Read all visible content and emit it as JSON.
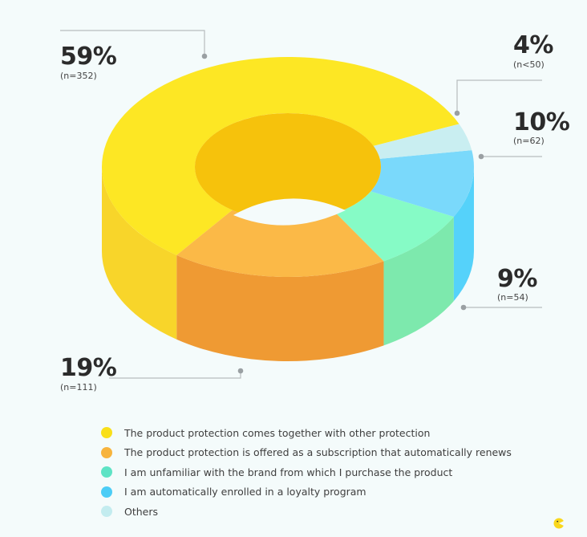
{
  "chart_data": {
    "type": "pie",
    "variant": "3d-donut",
    "slices": [
      {
        "label": "The product protection comes together with other protection",
        "value": 59,
        "display": "59%",
        "n_label": "(n=352)",
        "color": "#fde724",
        "side_color": "#f8d52a"
      },
      {
        "label": "The product protection is offered as a subscription that automatically renews",
        "value": 19,
        "display": "19%",
        "n_label": "(n=111)",
        "color": "#fbb947",
        "side_color": "#ef9a33"
      },
      {
        "label": "I am unfamiliar with the brand from which I purchase the product",
        "value": 9,
        "display": "9%",
        "n_label": "(n=54)",
        "color": "#86fbc6",
        "side_color": "#7de9ad"
      },
      {
        "label": "I am automatically enrolled in a loyalty program",
        "value": 10,
        "display": "10%",
        "n_label": "(n=62)",
        "color": "#7ad9fb",
        "side_color": "#55d2fa"
      },
      {
        "label": "Others",
        "value": 4,
        "display": "4%",
        "n_label": "(n<50)",
        "color": "#c9eef1",
        "side_color": "#b8e6ea"
      }
    ],
    "legend_position": "bottom",
    "legend_colors": [
      "#f9df1a",
      "#f7b43d",
      "#5ee3c5",
      "#4ccdf6",
      "#c3ecef"
    ]
  },
  "colors": {
    "background": "#f4fbfb",
    "inner_hole": "#f6c20c",
    "leader_line": "#b7bcbe"
  },
  "icons": {
    "logo": "brand-logo-icon"
  }
}
